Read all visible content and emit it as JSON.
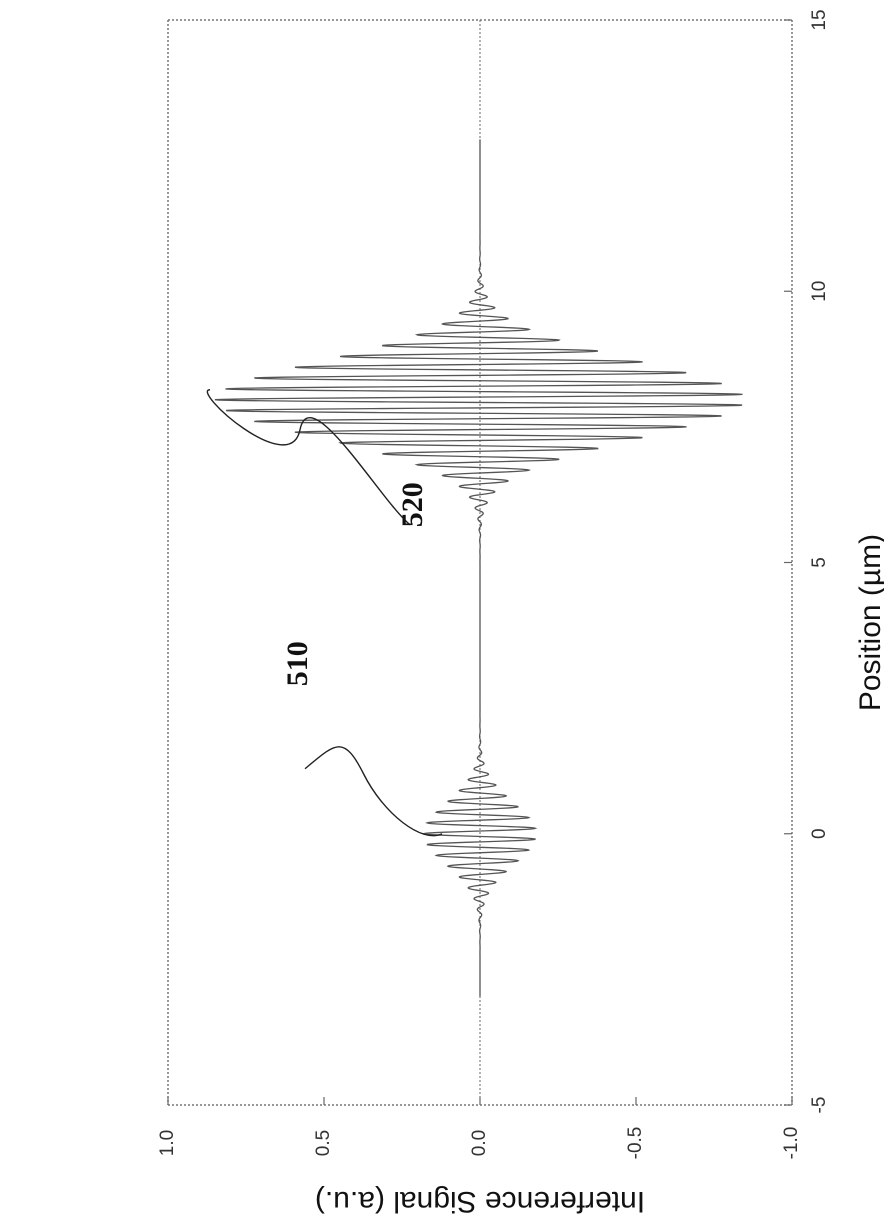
{
  "chart_data": {
    "type": "line",
    "orientation": "rotated 90 degrees counter-clockwise",
    "xlabel": "Position (µm)",
    "ylabel": "Interference Signal (a.u.)",
    "xlim": [
      -5,
      15
    ],
    "ylim": [
      -1.0,
      1.0
    ],
    "xticks": [
      -5,
      0,
      5,
      10,
      15
    ],
    "xtick_labels": [
      "-5",
      "0",
      "5",
      "10",
      "15"
    ],
    "yticks": [
      1.0,
      0.5,
      0.0,
      -0.5,
      -1.0
    ],
    "ytick_labels": [
      "1.0",
      "0.5",
      "0.0",
      "-0.5",
      "-1.0"
    ],
    "grid": false,
    "series": [
      {
        "color": "#555555",
        "wave_packets": [
          {
            "center": 0.0,
            "amplitude": 0.18,
            "period": 0.2,
            "envelope_width": 0.8
          },
          {
            "center": 8.0,
            "amplitude": 0.85,
            "period": 0.2,
            "envelope_width": 1.0
          }
        ]
      }
    ],
    "annotations": [
      {
        "text": "510",
        "x": 0.0,
        "y": 0.0
      },
      {
        "text": "520",
        "x": 8.0,
        "y": 0.0
      }
    ]
  }
}
